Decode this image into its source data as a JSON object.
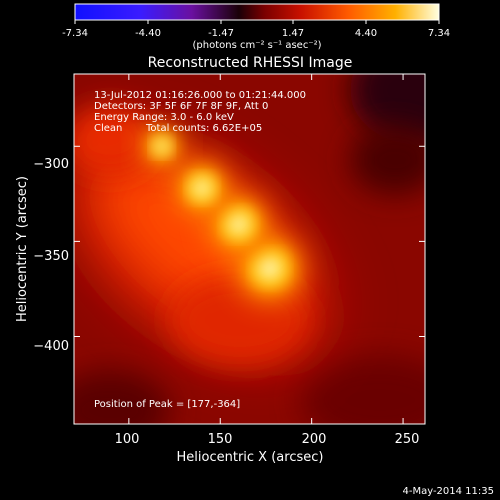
{
  "colorbar": {
    "ticks": [
      "-7.34",
      "-4.40",
      "-1.47",
      "1.47",
      "4.40",
      "7.34"
    ],
    "range": [
      -7.34,
      7.34
    ],
    "units": "(photons cm⁻² s⁻¹ asec⁻²)"
  },
  "chart_data": {
    "type": "heatmap",
    "title": "Reconstructed RHESSI Image",
    "xlabel": "Heliocentric X (arcsec)",
    "ylabel": "Heliocentric Y (arcsec)",
    "xlim": [
      70,
      262
    ],
    "ylim": [
      -446,
      -262
    ],
    "x_ticks": [
      100,
      150,
      200,
      250
    ],
    "y_ticks": [
      -300,
      -350,
      -400
    ],
    "x_tick_labels": [
      "100",
      "150",
      "200",
      "250"
    ],
    "y_tick_labels": [
      "−300",
      "−350",
      "−400"
    ],
    "annotations": [
      "13-Jul-2012 01:16:26.000 to 01:21:44.000",
      "Detectors: 3F 5F 6F 7F 8F 9F, Att 0",
      "Energy Range: 3.0 - 6.0 keV",
      "Clean",
      "Total counts: 6.62E+05"
    ],
    "peak_label": "Position of Peak = [177,-364]",
    "peak": [
      177,
      -364
    ],
    "sources": [
      {
        "x": 177,
        "y": -364,
        "value": 7.34
      },
      {
        "x": 160,
        "y": -341,
        "value": 6.6
      },
      {
        "x": 140,
        "y": -322,
        "value": 5.9
      },
      {
        "x": 118,
        "y": -300,
        "value": 4.4
      }
    ]
  },
  "footer": {
    "date": "4-May-2014 11:35"
  }
}
